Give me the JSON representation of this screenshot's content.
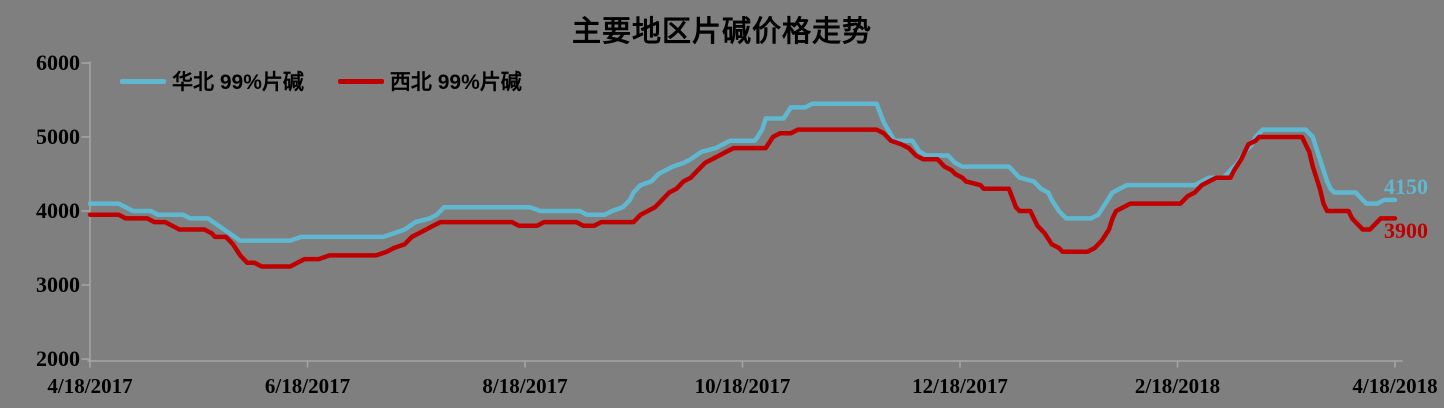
{
  "chart_data": {
    "type": "line",
    "title": "主要地区片碱价格走势",
    "background_color": "#7f7f7f",
    "axis_color": "#a6a6a6",
    "grid": false,
    "legend_position": "top-left",
    "ylim": [
      2000,
      6000
    ],
    "y_ticks": [
      "6000",
      "5000",
      "4000",
      "3000",
      "2000"
    ],
    "x_ticks": [
      "4/18/2017",
      "6/18/2017",
      "8/18/2017",
      "10/18/2017",
      "12/18/2017",
      "2/18/2018",
      "4/18/2018"
    ],
    "x_unit": "days since 2017-04-18 (0..365)",
    "series": [
      {
        "name": "华北 99%片碱",
        "color": "#5fb8d0",
        "end_label": "4150",
        "points": [
          [
            0,
            4100
          ],
          [
            8,
            4100
          ],
          [
            10,
            4050
          ],
          [
            12,
            4000
          ],
          [
            17,
            4000
          ],
          [
            19,
            3950
          ],
          [
            26,
            3950
          ],
          [
            28,
            3900
          ],
          [
            33,
            3900
          ],
          [
            36,
            3800
          ],
          [
            39,
            3700
          ],
          [
            42,
            3600
          ],
          [
            56,
            3600
          ],
          [
            59,
            3650
          ],
          [
            82,
            3650
          ],
          [
            85,
            3700
          ],
          [
            88,
            3750
          ],
          [
            91,
            3850
          ],
          [
            95,
            3900
          ],
          [
            97,
            3950
          ],
          [
            99,
            4050
          ],
          [
            123,
            4050
          ],
          [
            126,
            4000
          ],
          [
            137,
            4000
          ],
          [
            139,
            3950
          ],
          [
            144,
            3950
          ],
          [
            146,
            4000
          ],
          [
            149,
            4050
          ],
          [
            151,
            4150
          ],
          [
            152,
            4250
          ],
          [
            154,
            4350
          ],
          [
            157,
            4400
          ],
          [
            159,
            4500
          ],
          [
            161,
            4550
          ],
          [
            163,
            4600
          ],
          [
            166,
            4650
          ],
          [
            168,
            4700
          ],
          [
            171,
            4800
          ],
          [
            175,
            4850
          ],
          [
            177,
            4900
          ],
          [
            179,
            4950
          ],
          [
            186,
            4950
          ],
          [
            188,
            5100
          ],
          [
            189,
            5250
          ],
          [
            194,
            5250
          ],
          [
            196,
            5400
          ],
          [
            200,
            5400
          ],
          [
            202,
            5450
          ],
          [
            220,
            5450
          ],
          [
            222,
            5200
          ],
          [
            225,
            4950
          ],
          [
            230,
            4950
          ],
          [
            232,
            4800
          ],
          [
            234,
            4750
          ],
          [
            240,
            4750
          ],
          [
            242,
            4650
          ],
          [
            244,
            4600
          ],
          [
            257,
            4600
          ],
          [
            259,
            4500
          ],
          [
            260,
            4450
          ],
          [
            264,
            4400
          ],
          [
            266,
            4300
          ],
          [
            268,
            4250
          ],
          [
            269,
            4150
          ],
          [
            271,
            4000
          ],
          [
            272,
            3950
          ],
          [
            273,
            3900
          ],
          [
            280,
            3900
          ],
          [
            282,
            3950
          ],
          [
            284,
            4100
          ],
          [
            286,
            4250
          ],
          [
            288,
            4300
          ],
          [
            290,
            4350
          ],
          [
            309,
            4350
          ],
          [
            311,
            4400
          ],
          [
            313,
            4450
          ],
          [
            317,
            4450
          ],
          [
            319,
            4550
          ],
          [
            321,
            4650
          ],
          [
            323,
            4800
          ],
          [
            325,
            4900
          ],
          [
            326,
            5000
          ],
          [
            327,
            5050
          ],
          [
            328,
            5100
          ],
          [
            340,
            5100
          ],
          [
            342,
            5000
          ],
          [
            343,
            4850
          ],
          [
            344,
            4700
          ],
          [
            345,
            4550
          ],
          [
            346,
            4400
          ],
          [
            347,
            4300
          ],
          [
            348,
            4250
          ],
          [
            354,
            4250
          ],
          [
            356,
            4150
          ],
          [
            357,
            4100
          ],
          [
            360,
            4100
          ],
          [
            362,
            4150
          ],
          [
            365,
            4150
          ]
        ]
      },
      {
        "name": "西北 99%片碱",
        "color": "#c00000",
        "end_label": "3900",
        "points": [
          [
            0,
            3950
          ],
          [
            8,
            3950
          ],
          [
            10,
            3900
          ],
          [
            16,
            3900
          ],
          [
            18,
            3850
          ],
          [
            21,
            3850
          ],
          [
            23,
            3800
          ],
          [
            25,
            3750
          ],
          [
            32,
            3750
          ],
          [
            34,
            3700
          ],
          [
            35,
            3650
          ],
          [
            38,
            3650
          ],
          [
            40,
            3550
          ],
          [
            42,
            3400
          ],
          [
            44,
            3300
          ],
          [
            46,
            3300
          ],
          [
            48,
            3250
          ],
          [
            56,
            3250
          ],
          [
            58,
            3300
          ],
          [
            60,
            3350
          ],
          [
            64,
            3350
          ],
          [
            67,
            3400
          ],
          [
            80,
            3400
          ],
          [
            83,
            3450
          ],
          [
            85,
            3500
          ],
          [
            88,
            3550
          ],
          [
            90,
            3650
          ],
          [
            92,
            3700
          ],
          [
            94,
            3750
          ],
          [
            96,
            3800
          ],
          [
            98,
            3850
          ],
          [
            118,
            3850
          ],
          [
            120,
            3800
          ],
          [
            125,
            3800
          ],
          [
            127,
            3850
          ],
          [
            136,
            3850
          ],
          [
            138,
            3800
          ],
          [
            141,
            3800
          ],
          [
            143,
            3850
          ],
          [
            152,
            3850
          ],
          [
            154,
            3950
          ],
          [
            156,
            4000
          ],
          [
            158,
            4050
          ],
          [
            160,
            4150
          ],
          [
            162,
            4250
          ],
          [
            164,
            4300
          ],
          [
            166,
            4400
          ],
          [
            168,
            4450
          ],
          [
            170,
            4550
          ],
          [
            172,
            4650
          ],
          [
            174,
            4700
          ],
          [
            176,
            4750
          ],
          [
            178,
            4800
          ],
          [
            180,
            4850
          ],
          [
            189,
            4850
          ],
          [
            191,
            5000
          ],
          [
            193,
            5050
          ],
          [
            196,
            5050
          ],
          [
            198,
            5100
          ],
          [
            220,
            5100
          ],
          [
            222,
            5050
          ],
          [
            224,
            4950
          ],
          [
            227,
            4900
          ],
          [
            229,
            4850
          ],
          [
            231,
            4750
          ],
          [
            233,
            4700
          ],
          [
            237,
            4700
          ],
          [
            239,
            4600
          ],
          [
            241,
            4550
          ],
          [
            242,
            4500
          ],
          [
            244,
            4450
          ],
          [
            245,
            4400
          ],
          [
            249,
            4350
          ],
          [
            250,
            4300
          ],
          [
            257,
            4300
          ],
          [
            259,
            4050
          ],
          [
            260,
            4000
          ],
          [
            263,
            4000
          ],
          [
            265,
            3800
          ],
          [
            267,
            3700
          ],
          [
            269,
            3550
          ],
          [
            271,
            3500
          ],
          [
            272,
            3450
          ],
          [
            279,
            3450
          ],
          [
            281,
            3500
          ],
          [
            282,
            3550
          ],
          [
            283,
            3600
          ],
          [
            285,
            3750
          ],
          [
            286,
            3900
          ],
          [
            287,
            4000
          ],
          [
            289,
            4050
          ],
          [
            291,
            4100
          ],
          [
            305,
            4100
          ],
          [
            307,
            4200
          ],
          [
            309,
            4250
          ],
          [
            311,
            4350
          ],
          [
            313,
            4400
          ],
          [
            315,
            4450
          ],
          [
            319,
            4450
          ],
          [
            320,
            4550
          ],
          [
            322,
            4700
          ],
          [
            323,
            4800
          ],
          [
            324,
            4900
          ],
          [
            326,
            4950
          ],
          [
            327,
            5000
          ],
          [
            339,
            5000
          ],
          [
            341,
            4800
          ],
          [
            342,
            4600
          ],
          [
            344,
            4300
          ],
          [
            345,
            4100
          ],
          [
            346,
            4000
          ],
          [
            352,
            4000
          ],
          [
            353,
            3900
          ],
          [
            355,
            3800
          ],
          [
            356,
            3750
          ],
          [
            358,
            3750
          ],
          [
            359,
            3800
          ],
          [
            361,
            3900
          ],
          [
            365,
            3900
          ]
        ]
      }
    ]
  }
}
